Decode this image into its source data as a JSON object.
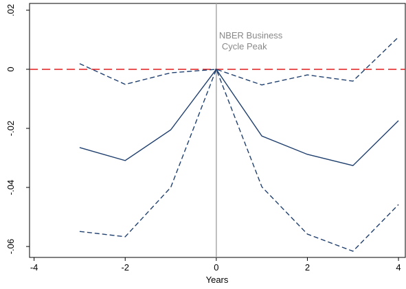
{
  "chart_data": {
    "type": "line",
    "xlabel": "Years",
    "annotation": [
      "NBER Business",
      "Cycle Peak"
    ],
    "x": [
      -3,
      -2,
      -1,
      0,
      1,
      2,
      3,
      4
    ],
    "series": [
      {
        "color": "#1f3f6e",
        "dashed": false,
        "values": [
          -0.0265,
          -0.0309,
          -0.0205,
          0,
          -0.0226,
          -0.0288,
          -0.0326,
          -0.0174
        ]
      },
      {
        "color": "#1f3f6e",
        "dashed": true,
        "values": [
          0.0019,
          -0.0051,
          -0.0012,
          0,
          -0.0053,
          -0.0019,
          -0.004,
          0.0109
        ]
      },
      {
        "color": "#1f3f6e",
        "dashed": true,
        "values": [
          -0.0549,
          -0.0567,
          -0.04,
          0,
          -0.0398,
          -0.0558,
          -0.0616,
          -0.0458
        ]
      }
    ],
    "reference_lines": {
      "x": 0,
      "y": 0,
      "x_color": "#aaaaaa",
      "y_color": "#e41a1c"
    },
    "xlim": [
      -4.1,
      4.15
    ],
    "ylim": [
      -0.0637,
      0.0223
    ],
    "xticks": [
      -4,
      -2,
      0,
      2,
      4
    ],
    "yticks": [
      {
        "value": -0.06,
        "label": "-.06"
      },
      {
        "value": -0.04,
        "label": "-.04"
      },
      {
        "value": -0.02,
        "label": "-.02"
      },
      0,
      {
        "value": 0.02,
        "label": ".02"
      }
    ],
    "grid": false
  }
}
